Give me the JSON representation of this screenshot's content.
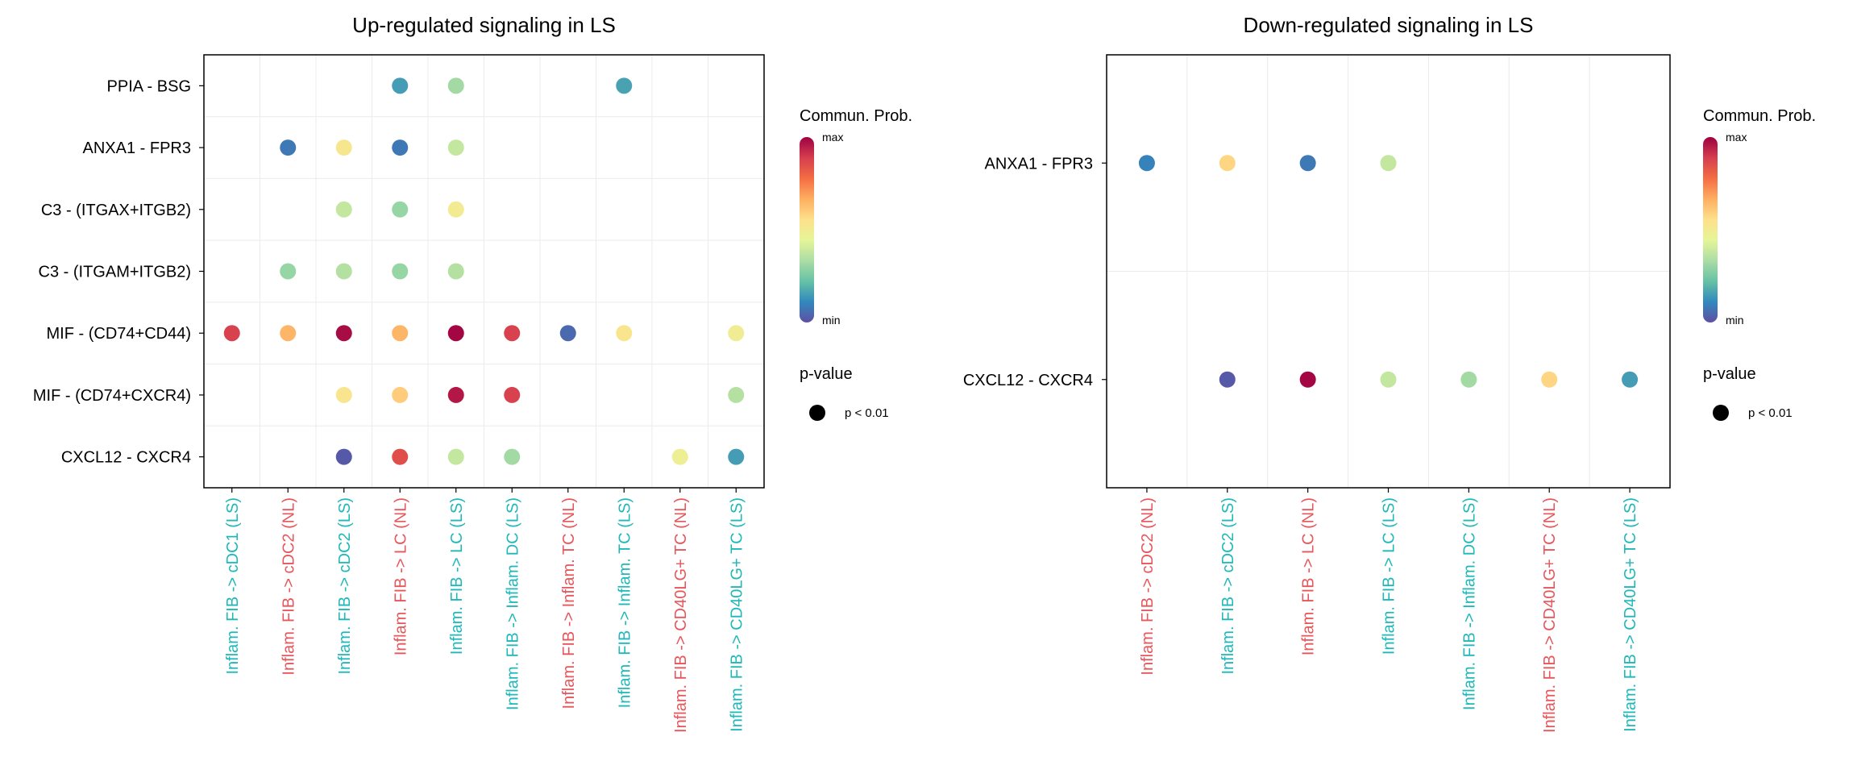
{
  "chart_data": [
    {
      "type": "bubble",
      "title": "Up-regulated signaling in LS",
      "y_categories": [
        "PPIA - BSG",
        "ANXA1 - FPR3",
        "C3 - (ITGAX+ITGB2)",
        "C3 - (ITGAM+ITGB2)",
        "MIF - (CD74+CD44)",
        "MIF - (CD74+CXCR4)",
        "CXCL12 - CXCR4"
      ],
      "x_categories": [
        {
          "label": "Inflam. FIB -> cDC1 (LS)",
          "group": "LS"
        },
        {
          "label": "Inflam. FIB -> cDC2 (NL)",
          "group": "NL"
        },
        {
          "label": "Inflam. FIB -> cDC2 (LS)",
          "group": "LS"
        },
        {
          "label": "Inflam. FIB -> LC (NL)",
          "group": "NL"
        },
        {
          "label": "Inflam. FIB -> LC (LS)",
          "group": "LS"
        },
        {
          "label": "Inflam. FIB -> Inflam. DC (LS)",
          "group": "LS"
        },
        {
          "label": "Inflam. FIB -> Inflam. TC (NL)",
          "group": "NL"
        },
        {
          "label": "Inflam. FIB -> Inflam. TC (LS)",
          "group": "LS"
        },
        {
          "label": "Inflam. FIB -> CD40LG+ TC (NL)",
          "group": "NL"
        },
        {
          "label": "Inflam. FIB -> CD40LG+ TC (LS)",
          "group": "LS"
        }
      ],
      "points": [
        {
          "x": 3,
          "y": 0,
          "prob": 0.15
        },
        {
          "x": 4,
          "y": 0,
          "prob": 0.32
        },
        {
          "x": 7,
          "y": 0,
          "prob": 0.16
        },
        {
          "x": 1,
          "y": 1,
          "prob": 0.08
        },
        {
          "x": 2,
          "y": 1,
          "prob": 0.52
        },
        {
          "x": 3,
          "y": 1,
          "prob": 0.08
        },
        {
          "x": 4,
          "y": 1,
          "prob": 0.38
        },
        {
          "x": 2,
          "y": 2,
          "prob": 0.38
        },
        {
          "x": 3,
          "y": 2,
          "prob": 0.3
        },
        {
          "x": 4,
          "y": 2,
          "prob": 0.5
        },
        {
          "x": 1,
          "y": 3,
          "prob": 0.3
        },
        {
          "x": 2,
          "y": 3,
          "prob": 0.35
        },
        {
          "x": 3,
          "y": 3,
          "prob": 0.3
        },
        {
          "x": 4,
          "y": 3,
          "prob": 0.35
        },
        {
          "x": 0,
          "y": 4,
          "prob": 0.88
        },
        {
          "x": 1,
          "y": 4,
          "prob": 0.65
        },
        {
          "x": 2,
          "y": 4,
          "prob": 0.98
        },
        {
          "x": 3,
          "y": 4,
          "prob": 0.65
        },
        {
          "x": 4,
          "y": 4,
          "prob": 0.99
        },
        {
          "x": 5,
          "y": 4,
          "prob": 0.88
        },
        {
          "x": 6,
          "y": 4,
          "prob": 0.05
        },
        {
          "x": 7,
          "y": 4,
          "prob": 0.53
        },
        {
          "x": 9,
          "y": 4,
          "prob": 0.49
        },
        {
          "x": 2,
          "y": 5,
          "prob": 0.53
        },
        {
          "x": 3,
          "y": 5,
          "prob": 0.6
        },
        {
          "x": 4,
          "y": 5,
          "prob": 0.96
        },
        {
          "x": 5,
          "y": 5,
          "prob": 0.88
        },
        {
          "x": 9,
          "y": 5,
          "prob": 0.35
        },
        {
          "x": 2,
          "y": 6,
          "prob": 0.02
        },
        {
          "x": 3,
          "y": 6,
          "prob": 0.85
        },
        {
          "x": 4,
          "y": 6,
          "prob": 0.38
        },
        {
          "x": 5,
          "y": 6,
          "prob": 0.32
        },
        {
          "x": 8,
          "y": 6,
          "prob": 0.48
        },
        {
          "x": 9,
          "y": 6,
          "prob": 0.15
        }
      ],
      "legend": {
        "title": "Commun. Prob.",
        "max_label": "max",
        "min_label": "min",
        "pvalue_title": "p-value",
        "pvalue_label": "p < 0.01"
      }
    },
    {
      "type": "bubble",
      "title": "Down-regulated signaling in LS",
      "y_categories": [
        "ANXA1 - FPR3",
        "CXCL12 - CXCR4"
      ],
      "x_categories": [
        {
          "label": "Inflam. FIB -> cDC2 (NL)",
          "group": "NL"
        },
        {
          "label": "Inflam. FIB -> cDC2 (LS)",
          "group": "LS"
        },
        {
          "label": "Inflam. FIB -> LC (NL)",
          "group": "NL"
        },
        {
          "label": "Inflam. FIB -> LC (LS)",
          "group": "LS"
        },
        {
          "label": "Inflam. FIB -> Inflam. DC (LS)",
          "group": "LS"
        },
        {
          "label": "Inflam. FIB -> CD40LG+ TC (NL)",
          "group": "NL"
        },
        {
          "label": "Inflam. FIB -> CD40LG+ TC (LS)",
          "group": "LS"
        }
      ],
      "points": [
        {
          "x": 0,
          "y": 0,
          "prob": 0.1
        },
        {
          "x": 1,
          "y": 0,
          "prob": 0.58
        },
        {
          "x": 2,
          "y": 0,
          "prob": 0.08
        },
        {
          "x": 3,
          "y": 0,
          "prob": 0.38
        },
        {
          "x": 1,
          "y": 1,
          "prob": 0.02
        },
        {
          "x": 2,
          "y": 1,
          "prob": 0.99
        },
        {
          "x": 3,
          "y": 1,
          "prob": 0.38
        },
        {
          "x": 4,
          "y": 1,
          "prob": 0.32
        },
        {
          "x": 5,
          "y": 1,
          "prob": 0.58
        },
        {
          "x": 6,
          "y": 1,
          "prob": 0.15
        }
      ],
      "legend": {
        "title": "Commun. Prob.",
        "max_label": "max",
        "min_label": "min",
        "pvalue_title": "p-value",
        "pvalue_label": "p < 0.01"
      }
    }
  ],
  "colors": {
    "group_LS": "#1fb8b8",
    "group_NL": "#e8555a",
    "grid": "#ebebeb",
    "axis": "#000000",
    "scale": [
      "#5e4fa2",
      "#3288bd",
      "#66c2a5",
      "#abdda4",
      "#e6f598",
      "#fee08b",
      "#fdae61",
      "#f46d43",
      "#d53e4f",
      "#9e0142"
    ]
  }
}
